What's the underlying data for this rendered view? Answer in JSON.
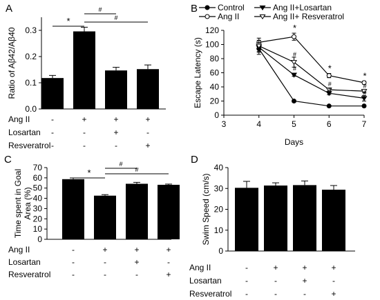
{
  "chart_data": [
    {
      "panel": "A",
      "type": "bar",
      "ylabel": "Ratio of Aβ42/Aβ40",
      "ylim": [
        0,
        0.35
      ],
      "yticks": [
        "0.0",
        "0.1",
        "0.2",
        "0.3"
      ],
      "values": [
        0.118,
        0.296,
        0.147,
        0.152
      ],
      "errors": [
        0.01,
        0.016,
        0.012,
        0.016
      ],
      "conditions": [
        {
          "label": "Ang II",
          "signs": [
            "-",
            "+",
            "+",
            "+"
          ]
        },
        {
          "label": "Losartan",
          "signs": [
            "-",
            "-",
            "+",
            "-"
          ]
        },
        {
          "label": "Resveratrol",
          "signs": [
            "-",
            "-",
            "-",
            "+"
          ]
        }
      ],
      "annotations": [
        {
          "from": 0,
          "to": 1,
          "label": "*"
        },
        {
          "from": 1,
          "to": 2,
          "label": "#"
        },
        {
          "from": 1,
          "to": 3,
          "label": "#"
        }
      ]
    },
    {
      "panel": "B",
      "type": "line",
      "xlabel": "Days",
      "ylabel": "Escape Latency (s)",
      "xlim": [
        3,
        7
      ],
      "ylim": [
        0,
        120
      ],
      "xticks": [
        "3",
        "4",
        "5",
        "6",
        "7"
      ],
      "yticks": [
        "0",
        "20",
        "40",
        "60",
        "80",
        "100",
        "120"
      ],
      "x": [
        4,
        5,
        6,
        7
      ],
      "series": [
        {
          "name": "Control",
          "marker": "filled-circle",
          "values": [
            94,
            20,
            13,
            13
          ],
          "errors": [
            8,
            1.5,
            1,
            1.5
          ]
        },
        {
          "name": "Ang II",
          "marker": "open-circle",
          "values": [
            103,
            111,
            56,
            46
          ],
          "errors": [
            6,
            5,
            3,
            2
          ]
        },
        {
          "name": "Ang II+Losartan",
          "marker": "filled-triangle",
          "values": [
            96,
            57,
            31,
            24
          ],
          "errors": [
            7,
            2,
            2,
            4
          ]
        },
        {
          "name": "Ang II+ Resveratrol",
          "marker": "open-triangle",
          "values": [
            98,
            75,
            36,
            34
          ],
          "errors": [
            8,
            7,
            2,
            2
          ]
        }
      ],
      "annotations": [
        {
          "x": 5,
          "y": 119,
          "label": "*"
        },
        {
          "x": 5,
          "y": 83,
          "label": "#"
        },
        {
          "x": 5,
          "y": 63,
          "label": "#"
        },
        {
          "x": 6,
          "y": 62,
          "label": "*"
        },
        {
          "x": 6,
          "y": 41,
          "label": "#"
        },
        {
          "x": 6,
          "y": 33,
          "label": "#"
        },
        {
          "x": 7,
          "y": 51,
          "label": "*"
        },
        {
          "x": 7,
          "y": 38,
          "label": "#"
        },
        {
          "x": 7,
          "y": 29,
          "label": "#"
        }
      ]
    },
    {
      "panel": "C",
      "type": "bar",
      "ylabel": "Time spent in Goal Area (%)",
      "ylim": [
        0,
        70
      ],
      "yticks": [
        "0",
        "10",
        "20",
        "30",
        "40",
        "50",
        "60",
        "70"
      ],
      "values": [
        58.7,
        42.6,
        54.2,
        53.2
      ],
      "errors": [
        1.2,
        1.0,
        1.4,
        0.7
      ],
      "conditions": [
        {
          "label": "Ang II",
          "signs": [
            "-",
            "+",
            "+",
            "+"
          ]
        },
        {
          "label": "Losartan",
          "signs": [
            "-",
            "-",
            "+",
            "-"
          ]
        },
        {
          "label": "Resveratrol",
          "signs": [
            "-",
            "-",
            "-",
            "+"
          ]
        }
      ],
      "annotations": [
        {
          "from": 0,
          "to": 1,
          "label": "*"
        },
        {
          "from": 1,
          "to": 2,
          "label": "#"
        },
        {
          "from": 1,
          "to": 3,
          "label": "#"
        }
      ]
    },
    {
      "panel": "D",
      "type": "bar",
      "ylabel": "Swim Speed (cm/s)",
      "ylim": [
        0,
        40
      ],
      "yticks": [
        "0",
        "10",
        "20",
        "30",
        "40"
      ],
      "values": [
        30.3,
        31.4,
        31.6,
        29.4
      ],
      "errors": [
        3.1,
        1.3,
        2.0,
        2.0
      ],
      "conditions": [
        {
          "label": "Ang II",
          "signs": [
            "-",
            "+",
            "+",
            "+"
          ]
        },
        {
          "label": "Losartan",
          "signs": [
            "-",
            "-",
            "+",
            "-"
          ]
        },
        {
          "label": "Resveratrol",
          "signs": [
            "-",
            "-",
            "-",
            "+"
          ]
        }
      ],
      "annotations": []
    }
  ]
}
